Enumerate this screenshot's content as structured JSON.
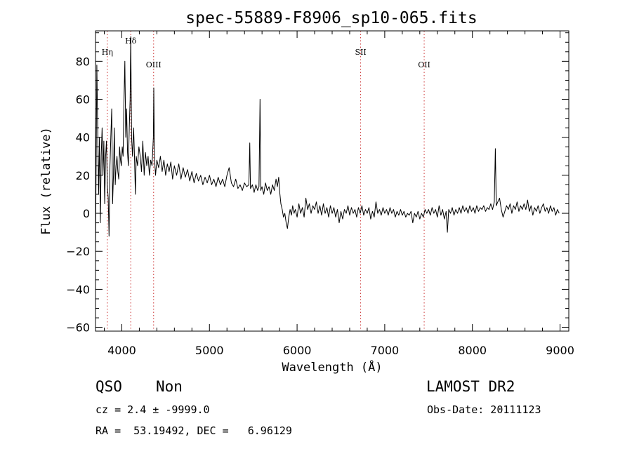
{
  "chart_data": {
    "type": "line",
    "title": "spec-55889-F8906_sp10-065.fits",
    "xlabel": "Wavelength (Å)",
    "ylabel": "Flux (relative)",
    "xlim": [
      3700,
      9100
    ],
    "ylim": [
      -62,
      96
    ],
    "x_ticks": [
      4000,
      5000,
      6000,
      7000,
      8000,
      9000
    ],
    "y_ticks": [
      -60,
      -40,
      -20,
      0,
      20,
      40,
      60,
      80
    ],
    "x_tick_labels": [
      "4000",
      "5000",
      "6000",
      "7000",
      "8000",
      "9000"
    ],
    "y_tick_labels": [
      "−60",
      "−40",
      "−20",
      "0",
      "20",
      "40",
      "60",
      "80"
    ],
    "grid": false,
    "line_color": "#000000",
    "marker_color": "#cc3333",
    "spectral_lines": [
      {
        "label": "Hη",
        "x": 3835
      },
      {
        "label": "Hδ",
        "x": 4102
      },
      {
        "label": "OIII",
        "x": 4363
      },
      {
        "label": "SII",
        "x": 6725
      },
      {
        "label": "OII",
        "x": 7450
      }
    ],
    "series": [
      {
        "values": [
          [
            3700,
            -20
          ],
          [
            3715,
            78
          ],
          [
            3725,
            45
          ],
          [
            3735,
            10
          ],
          [
            3745,
            40
          ],
          [
            3755,
            -5
          ],
          [
            3765,
            30
          ],
          [
            3775,
            45
          ],
          [
            3785,
            20
          ],
          [
            3795,
            38
          ],
          [
            3805,
            5
          ],
          [
            3815,
            30
          ],
          [
            3825,
            38
          ],
          [
            3835,
            15
          ],
          [
            3845,
            8
          ],
          [
            3855,
            -12
          ],
          [
            3865,
            25
          ],
          [
            3875,
            40
          ],
          [
            3885,
            55
          ],
          [
            3895,
            5
          ],
          [
            3905,
            20
          ],
          [
            3915,
            45
          ],
          [
            3925,
            15
          ],
          [
            3935,
            25
          ],
          [
            3945,
            30
          ],
          [
            3955,
            22
          ],
          [
            3965,
            18
          ],
          [
            3975,
            35
          ],
          [
            3985,
            28
          ],
          [
            3995,
            25
          ],
          [
            4005,
            35
          ],
          [
            4015,
            30
          ],
          [
            4025,
            60
          ],
          [
            4035,
            80
          ],
          [
            4045,
            40
          ],
          [
            4055,
            55
          ],
          [
            4065,
            32
          ],
          [
            4075,
            25
          ],
          [
            4085,
            45
          ],
          [
            4095,
            60
          ],
          [
            4102,
            93
          ],
          [
            4112,
            40
          ],
          [
            4122,
            30
          ],
          [
            4135,
            45
          ],
          [
            4145,
            30
          ],
          [
            4155,
            10
          ],
          [
            4165,
            30
          ],
          [
            4180,
            25
          ],
          [
            4195,
            35
          ],
          [
            4210,
            30
          ],
          [
            4225,
            22
          ],
          [
            4240,
            38
          ],
          [
            4255,
            20
          ],
          [
            4270,
            32
          ],
          [
            4285,
            25
          ],
          [
            4300,
            30
          ],
          [
            4315,
            20
          ],
          [
            4330,
            28
          ],
          [
            4345,
            25
          ],
          [
            4360,
            40
          ],
          [
            4365,
            66
          ],
          [
            4372,
            30
          ],
          [
            4385,
            20
          ],
          [
            4400,
            28
          ],
          [
            4420,
            24
          ],
          [
            4440,
            30
          ],
          [
            4460,
            22
          ],
          [
            4480,
            28
          ],
          [
            4500,
            20
          ],
          [
            4520,
            26
          ],
          [
            4540,
            22
          ],
          [
            4560,
            27
          ],
          [
            4580,
            18
          ],
          [
            4600,
            25
          ],
          [
            4625,
            20
          ],
          [
            4650,
            26
          ],
          [
            4675,
            18
          ],
          [
            4700,
            24
          ],
          [
            4725,
            19
          ],
          [
            4750,
            23
          ],
          [
            4775,
            17
          ],
          [
            4800,
            22
          ],
          [
            4825,
            16
          ],
          [
            4850,
            21
          ],
          [
            4875,
            17
          ],
          [
            4900,
            20
          ],
          [
            4925,
            15
          ],
          [
            4950,
            19
          ],
          [
            4975,
            16
          ],
          [
            5000,
            20
          ],
          [
            5025,
            15
          ],
          [
            5050,
            18
          ],
          [
            5075,
            14
          ],
          [
            5100,
            19
          ],
          [
            5125,
            15
          ],
          [
            5150,
            18
          ],
          [
            5175,
            14
          ],
          [
            5200,
            20
          ],
          [
            5225,
            24
          ],
          [
            5250,
            16
          ],
          [
            5275,
            14
          ],
          [
            5300,
            18
          ],
          [
            5325,
            13
          ],
          [
            5350,
            15
          ],
          [
            5375,
            12
          ],
          [
            5400,
            16
          ],
          [
            5425,
            14
          ],
          [
            5450,
            15
          ],
          [
            5460,
            37
          ],
          [
            5468,
            13
          ],
          [
            5490,
            15
          ],
          [
            5510,
            11
          ],
          [
            5530,
            15
          ],
          [
            5550,
            12
          ],
          [
            5565,
            14
          ],
          [
            5577,
            60
          ],
          [
            5585,
            12
          ],
          [
            5600,
            14
          ],
          [
            5620,
            10
          ],
          [
            5640,
            16
          ],
          [
            5660,
            12
          ],
          [
            5680,
            14
          ],
          [
            5700,
            10
          ],
          [
            5720,
            15
          ],
          [
            5740,
            12
          ],
          [
            5760,
            18
          ],
          [
            5775,
            14
          ],
          [
            5790,
            19
          ],
          [
            5800,
            12
          ],
          [
            5815,
            5
          ],
          [
            5830,
            2
          ],
          [
            5845,
            -2
          ],
          [
            5860,
            0
          ],
          [
            5875,
            -5
          ],
          [
            5890,
            -8
          ],
          [
            5905,
            -2
          ],
          [
            5920,
            2
          ],
          [
            5935,
            -1
          ],
          [
            5950,
            4
          ],
          [
            5965,
            0
          ],
          [
            5980,
            2
          ],
          [
            6000,
            -2
          ],
          [
            6020,
            5
          ],
          [
            6040,
            0
          ],
          [
            6060,
            3
          ],
          [
            6080,
            -2
          ],
          [
            6100,
            8
          ],
          [
            6120,
            2
          ],
          [
            6140,
            5
          ],
          [
            6160,
            0
          ],
          [
            6180,
            4
          ],
          [
            6200,
            2
          ],
          [
            6220,
            6
          ],
          [
            6240,
            0
          ],
          [
            6260,
            4
          ],
          [
            6280,
            -1
          ],
          [
            6300,
            5
          ],
          [
            6320,
            0
          ],
          [
            6340,
            3
          ],
          [
            6360,
            -2
          ],
          [
            6380,
            4
          ],
          [
            6400,
            0
          ],
          [
            6420,
            3
          ],
          [
            6440,
            -2
          ],
          [
            6460,
            2
          ],
          [
            6480,
            -5
          ],
          [
            6500,
            1
          ],
          [
            6520,
            -3
          ],
          [
            6540,
            2
          ],
          [
            6560,
            0
          ],
          [
            6580,
            4
          ],
          [
            6600,
            -1
          ],
          [
            6620,
            3
          ],
          [
            6640,
            0
          ],
          [
            6660,
            2
          ],
          [
            6680,
            -2
          ],
          [
            6700,
            3
          ],
          [
            6720,
            0
          ],
          [
            6740,
            4
          ],
          [
            6760,
            -1
          ],
          [
            6780,
            2
          ],
          [
            6800,
            0
          ],
          [
            6820,
            3
          ],
          [
            6840,
            -3
          ],
          [
            6860,
            1
          ],
          [
            6880,
            -2
          ],
          [
            6900,
            6
          ],
          [
            6920,
            0
          ],
          [
            6940,
            2
          ],
          [
            6960,
            -1
          ],
          [
            6980,
            3
          ],
          [
            7000,
            0
          ],
          [
            7020,
            2
          ],
          [
            7040,
            -1
          ],
          [
            7060,
            3
          ],
          [
            7080,
            0
          ],
          [
            7100,
            2
          ],
          [
            7120,
            -2
          ],
          [
            7140,
            1
          ],
          [
            7160,
            -1
          ],
          [
            7180,
            2
          ],
          [
            7200,
            -1
          ],
          [
            7220,
            1
          ],
          [
            7240,
            -2
          ],
          [
            7260,
            0
          ],
          [
            7280,
            -1
          ],
          [
            7300,
            1
          ],
          [
            7320,
            -5
          ],
          [
            7340,
            0
          ],
          [
            7360,
            -2
          ],
          [
            7380,
            1
          ],
          [
            7400,
            -3
          ],
          [
            7420,
            0
          ],
          [
            7440,
            -2
          ],
          [
            7460,
            2
          ],
          [
            7480,
            0
          ],
          [
            7500,
            2
          ],
          [
            7520,
            -1
          ],
          [
            7540,
            3
          ],
          [
            7560,
            0
          ],
          [
            7580,
            2
          ],
          [
            7600,
            -2
          ],
          [
            7620,
            4
          ],
          [
            7640,
            -1
          ],
          [
            7660,
            2
          ],
          [
            7680,
            -3
          ],
          [
            7700,
            1
          ],
          [
            7715,
            -10
          ],
          [
            7730,
            2
          ],
          [
            7750,
            0
          ],
          [
            7770,
            3
          ],
          [
            7790,
            -1
          ],
          [
            7810,
            2
          ],
          [
            7830,
            0
          ],
          [
            7850,
            3
          ],
          [
            7870,
            0
          ],
          [
            7890,
            4
          ],
          [
            7910,
            1
          ],
          [
            7930,
            3
          ],
          [
            7950,
            0
          ],
          [
            7970,
            4
          ],
          [
            7990,
            1
          ],
          [
            8010,
            3
          ],
          [
            8030,
            0
          ],
          [
            8050,
            4
          ],
          [
            8070,
            1
          ],
          [
            8090,
            3
          ],
          [
            8110,
            2
          ],
          [
            8130,
            4
          ],
          [
            8150,
            1
          ],
          [
            8170,
            3
          ],
          [
            8190,
            2
          ],
          [
            8210,
            5
          ],
          [
            8230,
            2
          ],
          [
            8250,
            6
          ],
          [
            8262,
            34
          ],
          [
            8272,
            4
          ],
          [
            8290,
            6
          ],
          [
            8310,
            8
          ],
          [
            8330,
            2
          ],
          [
            8350,
            -2
          ],
          [
            8370,
            1
          ],
          [
            8390,
            4
          ],
          [
            8410,
            2
          ],
          [
            8430,
            5
          ],
          [
            8450,
            0
          ],
          [
            8470,
            4
          ],
          [
            8490,
            2
          ],
          [
            8510,
            6
          ],
          [
            8530,
            1
          ],
          [
            8550,
            4
          ],
          [
            8570,
            2
          ],
          [
            8590,
            5
          ],
          [
            8610,
            2
          ],
          [
            8630,
            7
          ],
          [
            8650,
            1
          ],
          [
            8670,
            4
          ],
          [
            8690,
            -1
          ],
          [
            8710,
            3
          ],
          [
            8730,
            1
          ],
          [
            8750,
            4
          ],
          [
            8770,
            0
          ],
          [
            8790,
            3
          ],
          [
            8810,
            5
          ],
          [
            8830,
            1
          ],
          [
            8850,
            3
          ],
          [
            8870,
            0
          ],
          [
            8890,
            4
          ],
          [
            8910,
            1
          ],
          [
            8930,
            3
          ],
          [
            8950,
            -1
          ],
          [
            8970,
            2
          ],
          [
            8990,
            0
          ]
        ]
      }
    ]
  },
  "info": {
    "object_class": "QSO",
    "subclass": "Non",
    "survey": "LAMOST DR2",
    "redshift": "cz = 2.4 ± -9999.0",
    "obs_date": "Obs-Date: 20111123",
    "coords": "RA =  53.19492, DEC =   6.96129"
  }
}
